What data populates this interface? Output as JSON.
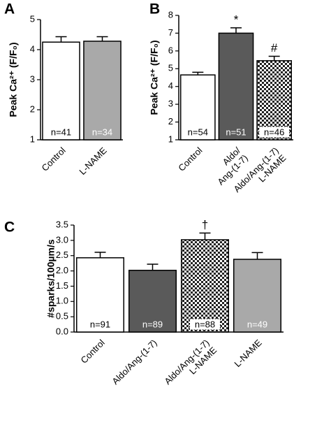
{
  "chart_data": [
    {
      "type": "bar",
      "panel": "A",
      "ylabel": "Peak Ca²⁺ (F/F₀)",
      "categories": [
        "Control",
        "L-NAME"
      ],
      "values": [
        4.25,
        4.28
      ],
      "errors": [
        0.18,
        0.15
      ],
      "n_labels": [
        "n=41",
        "n=34"
      ],
      "annotations": [
        null,
        null
      ],
      "colors": [
        "#ffffff",
        "#a9a9a9"
      ],
      "ylim": [
        1,
        5
      ],
      "yticks": [
        1,
        2,
        3,
        4,
        5
      ]
    },
    {
      "type": "bar",
      "panel": "B",
      "ylabel": "Peak Ca²⁺ (F/F₀)",
      "categories": [
        "Control",
        "Aldo/\nAng-(1-7)",
        "Aldo/Ang-(1-7)\nL-NAME"
      ],
      "values": [
        4.65,
        7.0,
        5.45
      ],
      "errors": [
        0.15,
        0.3,
        0.25
      ],
      "n_labels": [
        "n=54",
        "n=51",
        "n=46"
      ],
      "annotations": [
        null,
        "*",
        "#"
      ],
      "colors": [
        "#ffffff",
        "#5a5a5a",
        "checkered"
      ],
      "ylim": [
        1,
        8
      ],
      "yticks": [
        1,
        2,
        3,
        4,
        5,
        6,
        7,
        8
      ]
    },
    {
      "type": "bar",
      "panel": "C",
      "ylabel": "#sparks/100µm/s",
      "categories": [
        "Control",
        "Aldo/Ang-(1-7)",
        "Aldo/Ang-(1-7)\nL-NAME",
        "L-NAME"
      ],
      "values": [
        2.43,
        2.02,
        3.02,
        2.38
      ],
      "errors": [
        0.18,
        0.2,
        0.22,
        0.22
      ],
      "n_labels": [
        "n=91",
        "n=89",
        "n=88",
        "n=49"
      ],
      "annotations": [
        null,
        null,
        "†",
        null
      ],
      "colors": [
        "#ffffff",
        "#5a5a5a",
        "checkered",
        "#a9a9a9"
      ],
      "ylim": [
        0,
        3.5
      ],
      "yticks": [
        {
          "value": 0,
          "label": "0.0"
        },
        {
          "value": 0.5,
          "label": "0.5"
        },
        {
          "value": 1,
          "label": "1.0"
        },
        {
          "value": 1.5,
          "label": "1.5"
        },
        {
          "value": 2,
          "label": "2.0"
        },
        {
          "value": 2.5,
          "label": "2.5"
        },
        {
          "value": 3,
          "label": "3.0"
        },
        {
          "value": 3.5,
          "label": "3.5"
        }
      ]
    }
  ]
}
